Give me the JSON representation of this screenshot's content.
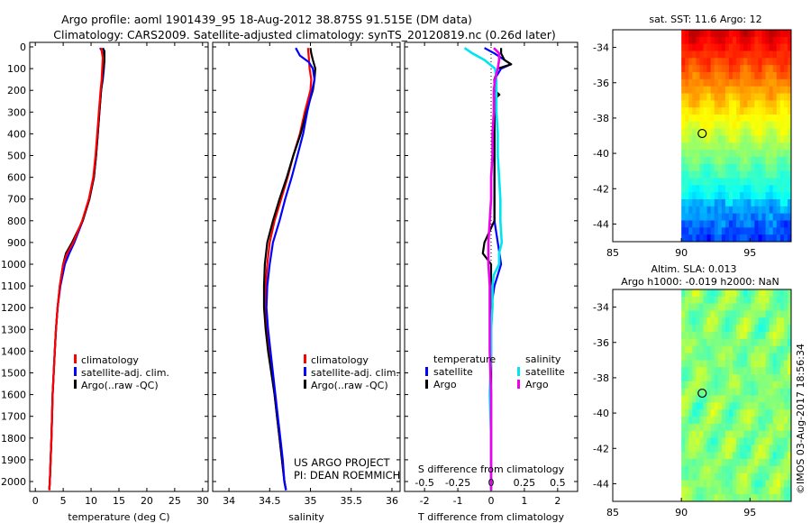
{
  "header": {
    "line1": "Argo profile: aoml 1901439_95 18-Aug-2012 38.875S 91.515E (DM data)",
    "line2": "Climatology: CARS2009. Satellite-adjusted climatology: synTS_20120819.nc (0.26d later)"
  },
  "credit": {
    "project": "US ARGO PROJECT",
    "pi": "PI: DEAN ROEMMICH",
    "imos": "©IMOS 03-Aug-2017 18:56:34"
  },
  "colors": {
    "climatology": "#ff0000",
    "satellite": "#0000ff",
    "argo": "#000000",
    "sal_satellite": "#00e5ee",
    "sal_argo": "#ee00ee",
    "frame": "#000000"
  },
  "chart_data": [
    {
      "type": "line",
      "id": "temperature",
      "xlabel": "temperature (deg C)",
      "ylabel": "",
      "xlim": [
        -1,
        31
      ],
      "ylim": [
        2070,
        0
      ],
      "xticks": [
        0,
        5,
        10,
        15,
        20,
        25,
        30
      ],
      "yticks": [
        0,
        100,
        200,
        300,
        400,
        500,
        600,
        700,
        800,
        900,
        1000,
        1100,
        1200,
        1300,
        1400,
        1500,
        1600,
        1700,
        1800,
        1900,
        2000
      ],
      "legend": [
        "climatology",
        "satellite-adj. clim.",
        "Argo(..raw -QC)"
      ],
      "series": [
        {
          "name": "climatology",
          "depth": [
            5,
            50,
            100,
            150,
            200,
            300,
            400,
            500,
            600,
            700,
            800,
            900,
            950,
            1000,
            1100,
            1200,
            1300,
            1400,
            1500,
            1600,
            1800,
            2000,
            2050
          ],
          "values": [
            11.8,
            12.1,
            12.0,
            11.9,
            11.7,
            11.4,
            11.1,
            10.8,
            10.4,
            9.6,
            8.4,
            6.8,
            5.7,
            5.0,
            4.4,
            4.0,
            3.7,
            3.5,
            3.3,
            3.1,
            2.9,
            2.6,
            2.5
          ]
        },
        {
          "name": "satellite-adj. clim.",
          "depth": [
            5,
            30,
            60,
            100,
            150,
            200,
            300,
            400,
            500,
            600,
            700,
            800,
            900,
            950,
            1000,
            1100,
            1200,
            1300,
            1400,
            1500,
            1600,
            1800,
            2000,
            2050
          ],
          "values": [
            11.6,
            12.2,
            12.4,
            12.3,
            12.1,
            11.8,
            11.5,
            11.2,
            10.9,
            10.5,
            9.7,
            8.5,
            7.0,
            6.1,
            5.3,
            4.5,
            4.0,
            3.7,
            3.5,
            3.3,
            3.1,
            2.9,
            2.6,
            2.5
          ]
        },
        {
          "name": "Argo(..raw -QC)",
          "depth": [
            5,
            20,
            60,
            100,
            150,
            200,
            300,
            400,
            500,
            600,
            700,
            800,
            900,
            950,
            1000,
            1100,
            1200,
            1300,
            1400,
            1500,
            1600,
            1800,
            2000,
            2050
          ],
          "values": [
            12.1,
            12.4,
            12.4,
            12.2,
            12.0,
            11.8,
            11.5,
            11.2,
            10.9,
            10.5,
            9.7,
            8.5,
            6.6,
            5.5,
            5.0,
            4.4,
            4.0,
            3.7,
            3.5,
            3.3,
            3.1,
            2.9,
            2.6,
            2.5
          ]
        }
      ]
    },
    {
      "type": "line",
      "id": "salinity",
      "xlabel": "salinity",
      "ylabel": "",
      "xlim": [
        33.8,
        36.1
      ],
      "ylim": [
        2070,
        0
      ],
      "xticks": [
        34,
        34.5,
        35,
        35.5,
        36
      ],
      "legend": [
        "climatology",
        "satellite-adj. clim.",
        "Argo(..raw -QC)"
      ],
      "series": [
        {
          "name": "climatology",
          "depth": [
            5,
            50,
            100,
            150,
            200,
            300,
            400,
            500,
            600,
            700,
            800,
            900,
            1000,
            1100,
            1200,
            1300,
            1400,
            1500,
            1600,
            1700,
            1800,
            1900,
            2000,
            2050
          ],
          "values": [
            34.97,
            34.98,
            34.99,
            35.01,
            35.0,
            34.93,
            34.87,
            34.79,
            34.72,
            34.64,
            34.56,
            34.5,
            34.47,
            34.45,
            34.45,
            34.47,
            34.5,
            34.53,
            34.56,
            34.59,
            34.62,
            34.65,
            34.68,
            34.7
          ]
        },
        {
          "name": "satellite-adj. clim.",
          "depth": [
            5,
            40,
            70,
            100,
            150,
            200,
            300,
            400,
            500,
            600,
            700,
            800,
            900,
            1000,
            1100,
            1200,
            1300,
            1400,
            1500,
            1600,
            1700,
            1800,
            1900,
            2000,
            2050
          ],
          "values": [
            34.82,
            34.87,
            34.98,
            35.03,
            35.05,
            35.02,
            34.96,
            34.91,
            34.84,
            34.77,
            34.69,
            34.62,
            34.54,
            34.5,
            34.47,
            34.46,
            34.48,
            34.51,
            34.54,
            34.57,
            34.6,
            34.63,
            34.66,
            34.68,
            34.7
          ]
        },
        {
          "name": "Argo(..raw -QC)",
          "depth": [
            5,
            30,
            60,
            100,
            150,
            200,
            300,
            400,
            500,
            600,
            700,
            800,
            900,
            1000,
            1100,
            1200,
            1300,
            1400,
            1500,
            1600,
            1700,
            1800,
            1900,
            2000,
            2050
          ],
          "values": [
            35.0,
            35.01,
            35.03,
            35.06,
            35.05,
            35.03,
            34.95,
            34.88,
            34.79,
            34.71,
            34.62,
            34.54,
            34.47,
            34.44,
            34.43,
            34.43,
            34.45,
            34.48,
            34.52,
            34.56,
            34.59,
            34.62,
            34.65,
            34.68,
            34.7
          ]
        }
      ]
    },
    {
      "type": "line",
      "id": "difference",
      "xlabel": "T difference from climatology",
      "xlabel_top": "S difference from climatology",
      "ylabel": "",
      "xlim": [
        -2.6,
        2.6
      ],
      "ylim": [
        2070,
        0
      ],
      "xticks": [
        -2,
        -1,
        0,
        1,
        2
      ],
      "s_xlim": [
        -0.65,
        0.65
      ],
      "s_xticks": [
        "-0.5",
        "-0.25",
        "0",
        "0.25",
        "0.5"
      ],
      "legend_titles": [
        "temperature",
        "salinity"
      ],
      "legend": [
        "satellite",
        "Argo",
        "satellite",
        "Argo"
      ],
      "series": [
        {
          "name": "temperature satellite",
          "axis": "T",
          "depth": [
            5,
            30,
            60,
            80,
            100,
            150,
            200,
            300,
            400,
            500,
            600,
            700,
            800,
            900,
            1000,
            1100,
            1200,
            1300,
            1400,
            1600,
            1800,
            2000,
            2050
          ],
          "values": [
            -0.2,
            0.1,
            0.4,
            0.6,
            0.3,
            0.1,
            0.1,
            0.1,
            0.1,
            0.1,
            0.1,
            0.1,
            0.1,
            0.2,
            0.3,
            0.1,
            0.0,
            0.0,
            0.0,
            0.0,
            0.0,
            0.0,
            0.0
          ]
        },
        {
          "name": "temperature Argo",
          "axis": "T",
          "depth": [
            5,
            30,
            60,
            80,
            100,
            150,
            200,
            220,
            240,
            300,
            400,
            500,
            600,
            700,
            800,
            900,
            950,
            1000,
            1100,
            1200,
            1300,
            1400,
            1600,
            1800,
            2000,
            2050
          ],
          "values": [
            0.3,
            0.3,
            0.4,
            0.6,
            0.2,
            0.1,
            0.1,
            0.25,
            0.1,
            0.1,
            0.1,
            0.1,
            0.1,
            0.1,
            0.1,
            -0.2,
            -0.25,
            0.0,
            0.0,
            0.0,
            0.0,
            0.0,
            0.0,
            0.0,
            0.0,
            0.0
          ]
        },
        {
          "name": "salinity satellite",
          "axis": "S",
          "depth": [
            5,
            30,
            60,
            100,
            150,
            200,
            300,
            400,
            500,
            600,
            700,
            800,
            900,
            950,
            1000,
            1050,
            1100,
            1200,
            1300,
            1400,
            1600,
            1800,
            2000,
            2050
          ],
          "values": [
            -0.2,
            -0.14,
            -0.05,
            0.03,
            0.04,
            0.04,
            0.04,
            0.05,
            0.05,
            0.06,
            0.07,
            0.07,
            0.08,
            0.06,
            0.06,
            0.02,
            0.01,
            0.01,
            0.0,
            0.0,
            -0.01,
            0.0,
            0.0,
            0.0
          ]
        },
        {
          "name": "salinity Argo",
          "axis": "S",
          "depth": [
            5,
            30,
            60,
            100,
            150,
            200,
            300,
            400,
            500,
            600,
            700,
            800,
            900,
            1000,
            1100,
            1200,
            1300,
            1400,
            1600,
            1800,
            2000,
            2050
          ],
          "values": [
            0.02,
            0.06,
            0.06,
            0.05,
            0.03,
            0.02,
            0.02,
            0.01,
            0.01,
            0.0,
            0.0,
            -0.01,
            -0.02,
            -0.02,
            -0.01,
            -0.01,
            -0.01,
            -0.01,
            0.0,
            0.0,
            0.0,
            0.0
          ]
        }
      ]
    },
    {
      "type": "heatmap",
      "id": "sst_map",
      "title": "sat. SST: 11.6 Argo: 12",
      "xlim": [
        85,
        98
      ],
      "ylim": [
        -45,
        -33
      ],
      "xticks": [
        85,
        90,
        95
      ],
      "yticks": [
        -34,
        -36,
        -38,
        -40,
        -42,
        -44
      ],
      "data_lon_start": 90,
      "marker": {
        "lon": 91.515,
        "lat": -38.875
      }
    },
    {
      "type": "heatmap",
      "id": "sla_map",
      "title": "Altim. SLA: 0.013",
      "subtitle": "Argo h1000: -0.019 h2000: NaN",
      "xlim": [
        85,
        98
      ],
      "ylim": [
        -45,
        -33
      ],
      "xticks": [
        85,
        90,
        95
      ],
      "yticks": [
        -34,
        -36,
        -38,
        -40,
        -42,
        -44
      ],
      "data_lon_start": 90,
      "marker": {
        "lon": 91.515,
        "lat": -38.875
      }
    }
  ]
}
